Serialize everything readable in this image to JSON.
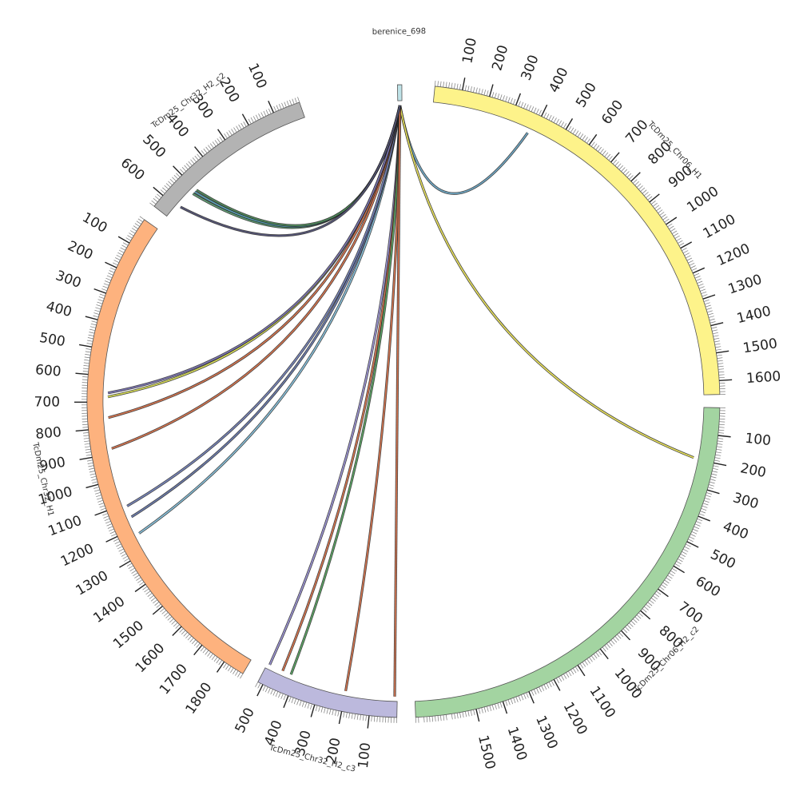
{
  "diagram": {
    "type": "circos",
    "segments": [
      {
        "name": "TcDm25_Chr06_H1",
        "color": "#fdf38a",
        "start_deg": 5.7,
        "end_deg": 88.8,
        "length": 1650,
        "reversed": false,
        "ticks": [
          "100",
          "200",
          "300",
          "400",
          "500",
          "600",
          "700",
          "800",
          "900",
          "1000",
          "1100",
          "1200",
          "1300",
          "1400",
          "1500",
          "1600"
        ]
      },
      {
        "name": "TcDm25_Chr06_H2_c2",
        "color": "#a3d4a1",
        "start_deg": 91.2,
        "end_deg": 177.8,
        "length": 1720,
        "reversed": false,
        "ticks": [
          "100",
          "200",
          "300",
          "400",
          "500",
          "600",
          "700",
          "800",
          "900",
          "1000",
          "1100",
          "1200",
          "1300",
          "1400",
          "1500"
        ]
      },
      {
        "name": "TcDm25_Chr32_H2_c3",
        "color": "#bcb9dd",
        "start_deg": 181.2,
        "end_deg": 207.4,
        "length": 520,
        "reversed": false,
        "ticks": [
          "100",
          "200",
          "300",
          "400",
          "500"
        ]
      },
      {
        "name": "TcDm25_Chr32_H1",
        "color": "#fdb27e",
        "start_deg": 210.5,
        "end_deg": 305.0,
        "length": 1880,
        "reversed": true,
        "ticks": [
          "100",
          "200",
          "300",
          "400",
          "500",
          "600",
          "700",
          "800",
          "900",
          "1000",
          "1100",
          "1200",
          "1300",
          "1400",
          "1500",
          "1600",
          "1700",
          "1800"
        ]
      },
      {
        "name": "TcDm25_Chr32_H2_c2",
        "color": "#b3b3b3",
        "start_deg": 308.0,
        "end_deg": 340.8,
        "length": 650,
        "reversed": true,
        "ticks": [
          "100",
          "200",
          "300",
          "400",
          "500",
          "600"
        ]
      },
      {
        "name": "berenice_698",
        "color": "#bfe3e8",
        "start_deg": 358.9,
        "end_deg": 359.7,
        "length": 698,
        "reversed": false,
        "ticks": []
      }
    ],
    "links": [
      {
        "from": [
          "berenice_698",
          349
        ],
        "to": [
          "TcDm25_Chr06_H1",
          380
        ],
        "color": "#6fa9c7"
      },
      {
        "from": [
          "berenice_698",
          349
        ],
        "to": [
          "TcDm25_Chr06_H2_c2",
          195
        ],
        "color": "#e8e15a"
      },
      {
        "from": [
          "berenice_698",
          349
        ],
        "to": [
          "TcDm25_Chr32_H1",
          1225
        ],
        "color": "#86bfd9"
      },
      {
        "from": [
          "berenice_698",
          349
        ],
        "to": [
          "TcDm25_Chr32_H1",
          1155
        ],
        "color": "#6c7cae"
      },
      {
        "from": [
          "berenice_698",
          349
        ],
        "to": [
          "TcDm25_Chr32_H1",
          1110
        ],
        "color": "#7683b8"
      },
      {
        "from": [
          "berenice_698",
          349
        ],
        "to": [
          "TcDm25_Chr32_H1",
          880
        ],
        "color": "#d6744e"
      },
      {
        "from": [
          "berenice_698",
          349
        ],
        "to": [
          "TcDm25_Chr32_H1",
          760
        ],
        "color": "#d6744e"
      },
      {
        "from": [
          "berenice_698",
          349
        ],
        "to": [
          "TcDm25_Chr32_H1",
          680
        ],
        "color": "#d7dc55"
      },
      {
        "from": [
          "berenice_698",
          349
        ],
        "to": [
          "TcDm25_Chr32_H1",
          665
        ],
        "color": "#7b74b3"
      },
      {
        "from": [
          "berenice_698",
          349
        ],
        "to": [
          "TcDm25_Chr32_H2_c3",
          510
        ],
        "color": "#9b93d4"
      },
      {
        "from": [
          "berenice_698",
          349
        ],
        "to": [
          "TcDm25_Chr32_H2_c3",
          455
        ],
        "color": "#d6744e"
      },
      {
        "from": [
          "berenice_698",
          349
        ],
        "to": [
          "TcDm25_Chr32_H2_c3",
          420
        ],
        "color": "#5aa463"
      },
      {
        "from": [
          "berenice_698",
          349
        ],
        "to": [
          "TcDm25_Chr32_H2_c3",
          200
        ],
        "color": "#d6744e"
      },
      {
        "from": [
          "berenice_698",
          349
        ],
        "to": [
          "TcDm25_Chr32_H2_c3",
          10
        ],
        "color": "#d6744e"
      },
      {
        "from": [
          "berenice_698",
          349
        ],
        "to": [
          "TcDm25_Chr32_H2_c2",
          520
        ],
        "color": "#5f9e74"
      },
      {
        "from": [
          "berenice_698",
          349
        ],
        "to": [
          "TcDm25_Chr32_H2_c2",
          510
        ],
        "color": "#5aa3b8"
      },
      {
        "from": [
          "berenice_698",
          349
        ],
        "to": [
          "TcDm25_Chr32_H2_c2",
          500
        ],
        "color": "#4f8a5a"
      },
      {
        "from": [
          "berenice_698",
          349
        ],
        "to": [
          "TcDm25_Chr32_H2_c2",
          590
        ],
        "color": "#555577"
      }
    ]
  }
}
